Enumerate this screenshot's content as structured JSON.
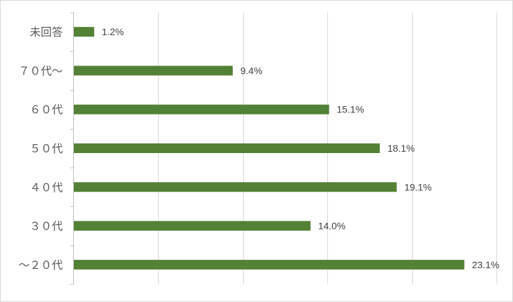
{
  "chart_data": {
    "type": "bar",
    "orientation": "horizontal",
    "categories": [
      "未回答",
      "７０代～",
      "６０代",
      "５０代",
      "４０代",
      "３０代",
      "～２０代"
    ],
    "values": [
      1.2,
      9.4,
      15.1,
      18.1,
      19.1,
      14.0,
      23.1
    ],
    "value_labels": [
      "1.2%",
      "9.4%",
      "15.1%",
      "18.1%",
      "19.1%",
      "14.0%",
      "23.1%"
    ],
    "xlim": [
      0,
      25
    ],
    "grid": true,
    "legend": "none",
    "bar_color": "#538135",
    "grid_color": "#d9d9d9",
    "axis_color": "#bfbfbf"
  }
}
